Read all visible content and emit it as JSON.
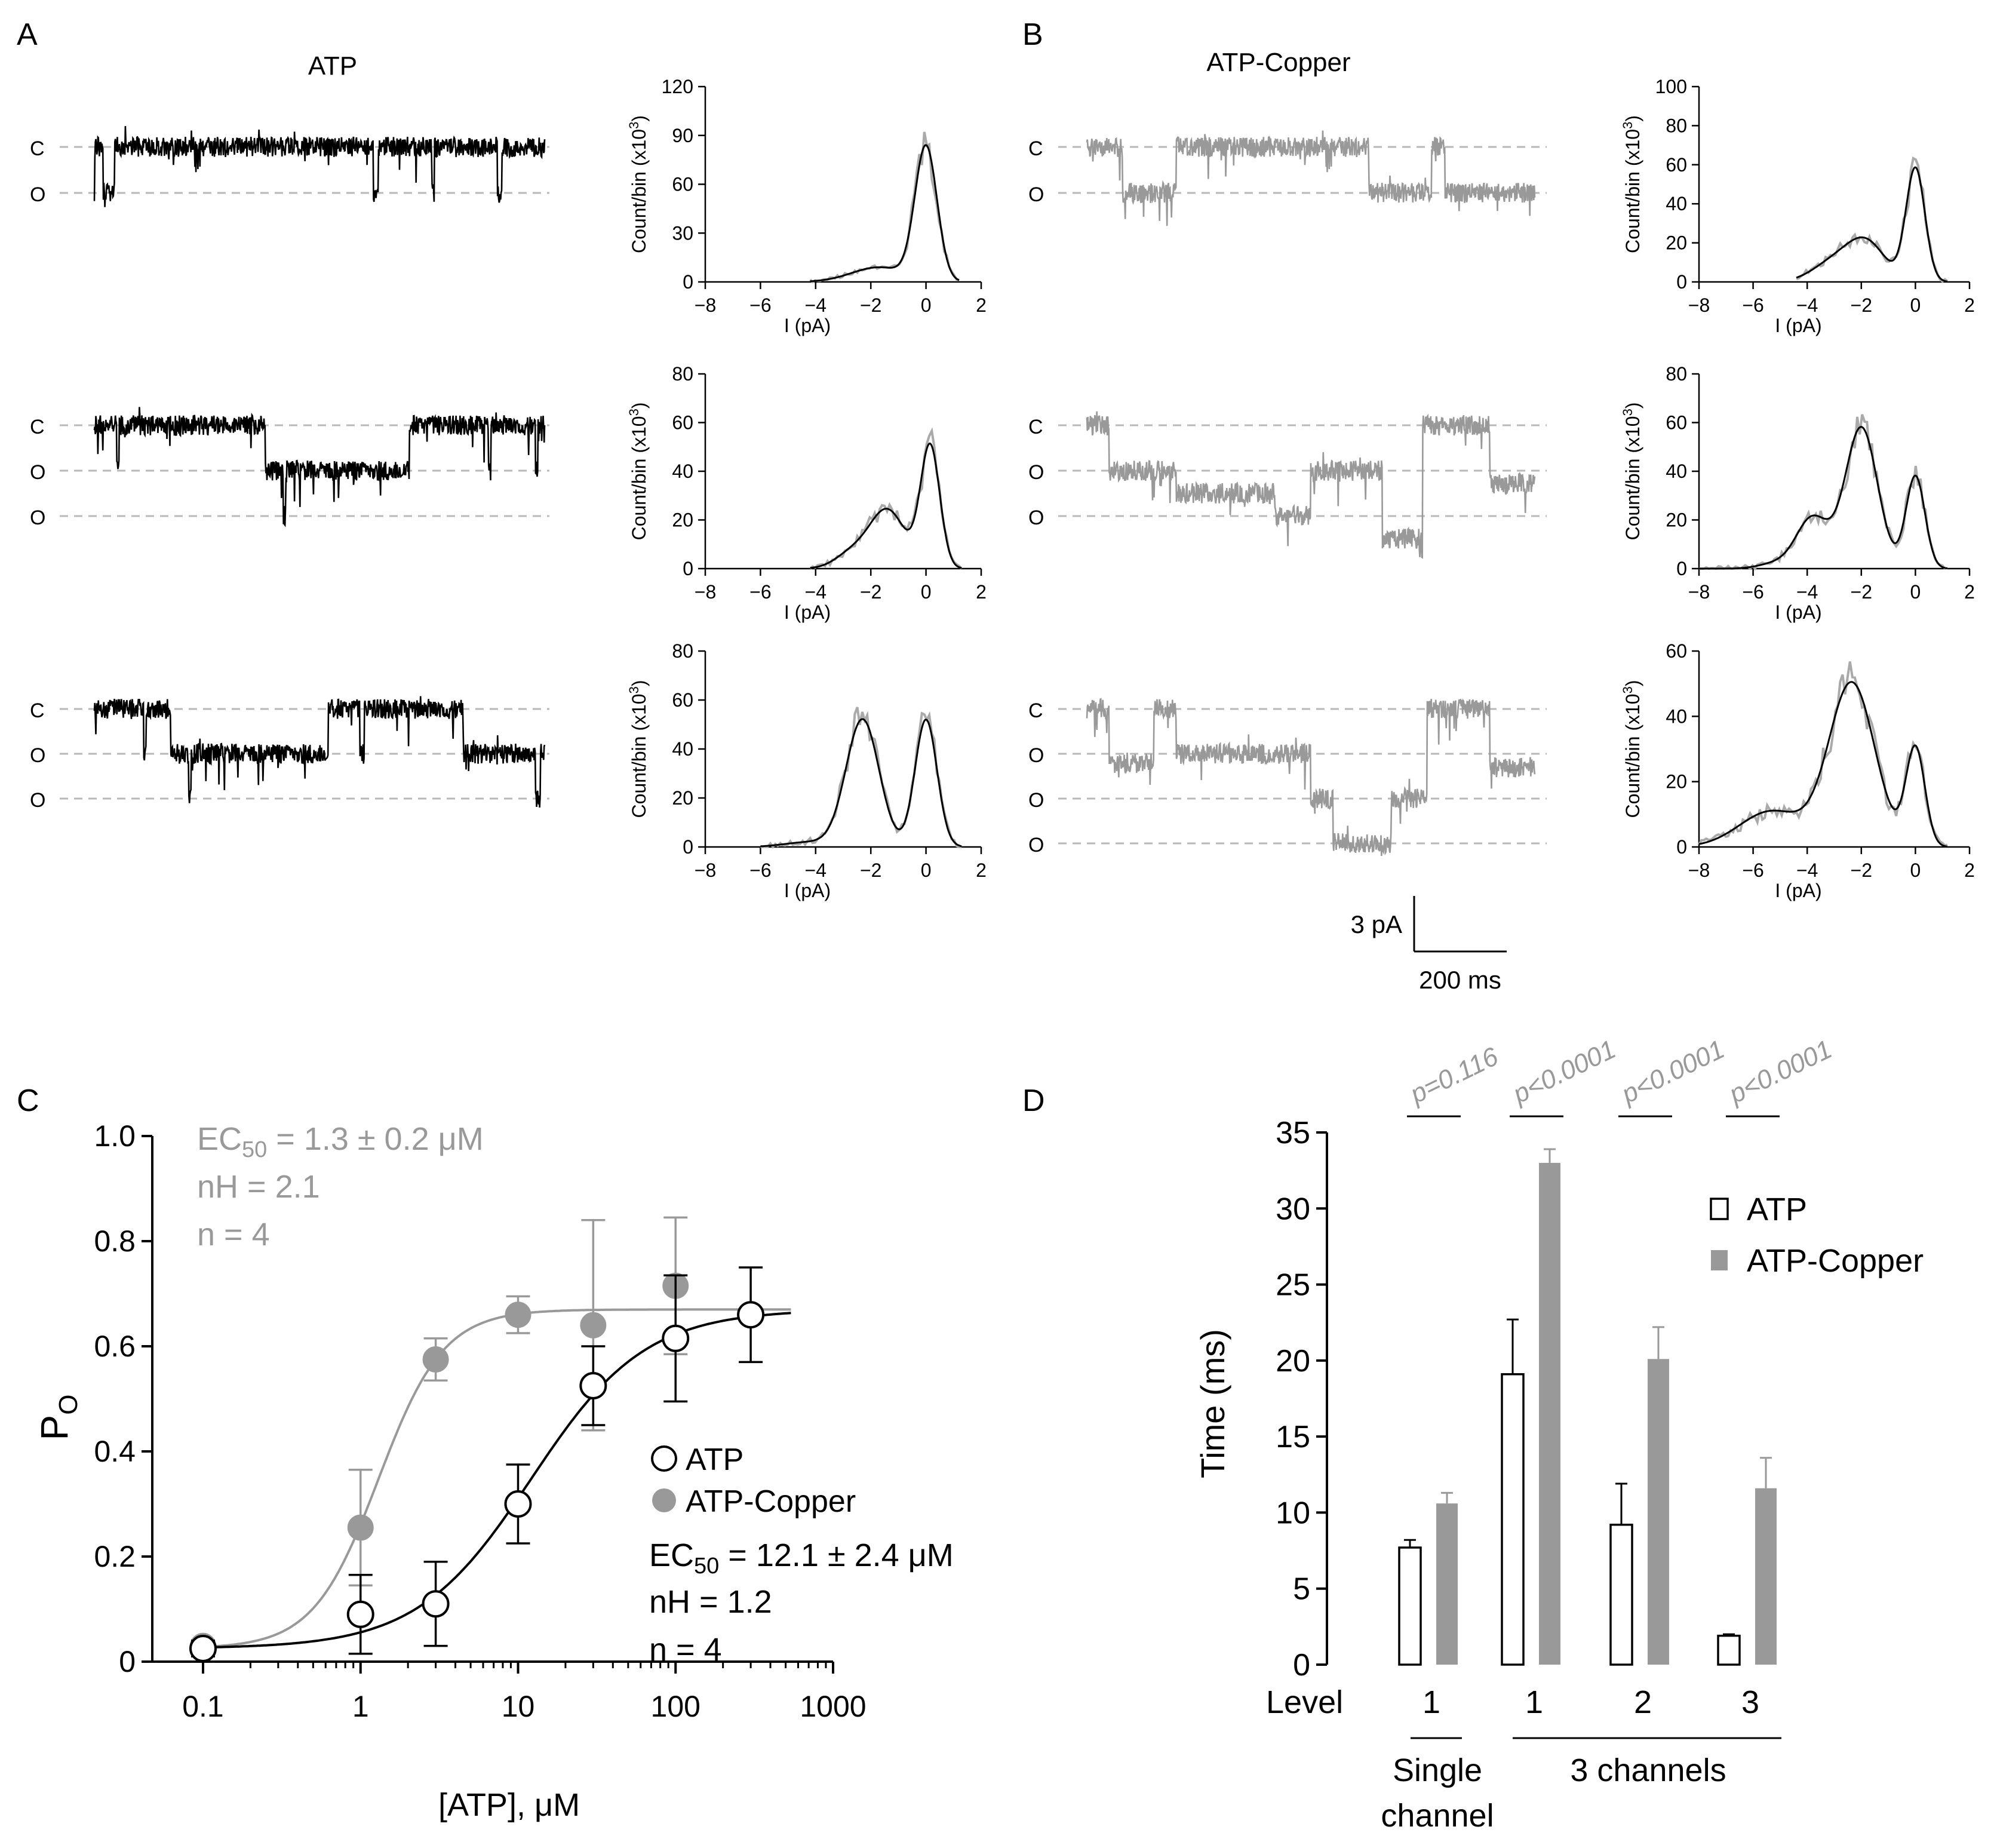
{
  "figure": {
    "panel_labels": [
      "A",
      "B",
      "C",
      "D"
    ],
    "condition_titles": [
      "ATP",
      "ATP-Copper"
    ],
    "state_labels": {
      "closed": "C",
      "open": "O"
    },
    "hist_axis": {
      "xlabel": "I (pA)",
      "ylabel": "Count/bin (x10",
      "ylabel_sup": "3",
      "ylabel_close": ")"
    },
    "scalebar": {
      "current": "3 pA",
      "time": "200 ms"
    },
    "colors": {
      "atp": "#000000",
      "copper": "#999999",
      "dash": "#b8b8b8"
    }
  },
  "chart_data": [
    {
      "type": "line",
      "panel": "A",
      "title": "ATP",
      "kind": "current-traces",
      "traces": [
        {
          "open_levels": 1,
          "segments": [
            [
              0,
              0.0,
              1
            ],
            [
              0.02,
              0.045,
              1
            ],
            [
              0.045,
              0.95,
              0
            ],
            [
              0.62,
              0.63,
              1
            ],
            [
              0.75,
              0.755,
              1
            ],
            [
              0.895,
              0.905,
              1
            ],
            [
              0.92,
              1.0,
              0
            ]
          ]
        },
        {
          "open_levels": 2,
          "segments": [
            [
              0,
              0.38,
              0
            ],
            [
              0.05,
              0.055,
              1
            ],
            [
              0.38,
              0.7,
              1
            ],
            [
              0.42,
              0.425,
              2
            ],
            [
              0.7,
              1.0,
              0
            ],
            [
              0.875,
              0.88,
              1
            ],
            [
              0.98,
              0.985,
              1
            ]
          ]
        },
        {
          "open_levels": 2,
          "segments": [
            [
              0,
              0.17,
              0
            ],
            [
              0.11,
              0.115,
              1
            ],
            [
              0.17,
              0.22,
              1
            ],
            [
              0.22,
              0.59,
              1
            ],
            [
              0.52,
              0.6,
              0
            ],
            [
              0.21,
              0.215,
              2
            ],
            [
              0.59,
              0.6,
              1
            ],
            [
              0.6,
              0.82,
              0
            ],
            [
              0.82,
              1.0,
              1
            ],
            [
              0.98,
              0.99,
              2
            ]
          ]
        }
      ]
    },
    {
      "type": "line",
      "panel": "B",
      "title": "ATP-Copper",
      "kind": "current-traces",
      "traces": [
        {
          "open_levels": 1,
          "segments": [
            [
              0,
              0.08,
              0
            ],
            [
              0.08,
              0.2,
              1
            ],
            [
              0.2,
              0.63,
              0
            ],
            [
              0.63,
              0.77,
              1
            ],
            [
              0.77,
              0.8,
              0
            ],
            [
              0.8,
              1.0,
              1
            ]
          ]
        },
        {
          "open_levels": 3,
          "segments": [
            [
              0,
              0.05,
              0
            ],
            [
              0.05,
              0.2,
              1
            ],
            [
              0.2,
              0.42,
              1.5
            ],
            [
              0.42,
              0.5,
              2
            ],
            [
              0.5,
              0.66,
              1
            ],
            [
              0.66,
              0.75,
              2.5
            ],
            [
              0.75,
              0.9,
              0
            ],
            [
              0.9,
              1.0,
              1.3
            ]
          ]
        },
        {
          "open_levels": 3,
          "segments": [
            [
              0,
              0.05,
              0
            ],
            [
              0.05,
              0.15,
              1.2
            ],
            [
              0.15,
              0.2,
              0
            ],
            [
              0.2,
              0.5,
              1
            ],
            [
              0.5,
              0.55,
              2
            ],
            [
              0.55,
              0.68,
              3
            ],
            [
              0.68,
              0.76,
              2
            ],
            [
              0.76,
              0.9,
              0
            ],
            [
              0.9,
              1.0,
              1.3
            ]
          ]
        }
      ]
    },
    {
      "type": "line",
      "panel": "A",
      "kind": "histogram",
      "xlabel": "I (pA)",
      "ylabel": "Count/bin (x10^3)",
      "xlim": [
        -8,
        2
      ],
      "xticks": [
        -8,
        -6,
        -4,
        -2,
        0,
        2
      ],
      "plots": [
        {
          "ylim": [
            0,
            120
          ],
          "yticks": [
            0,
            30,
            60,
            90,
            120
          ],
          "peaks": [
            [
              0,
              82,
              0.4
            ],
            [
              -1.7,
              9,
              1.0
            ]
          ],
          "xmin": -4.2,
          "xmax": 1.2
        },
        {
          "ylim": [
            0,
            80
          ],
          "yticks": [
            0,
            20,
            40,
            60,
            80
          ],
          "peaks": [
            [
              0.15,
              50,
              0.35
            ],
            [
              -1.4,
              24,
              0.65
            ],
            [
              -2.7,
              6,
              0.6
            ]
          ],
          "xmin": -4.2,
          "xmax": 1.3
        },
        {
          "ylim": [
            0,
            80
          ],
          "yticks": [
            0,
            20,
            40,
            60,
            80
          ],
          "peaks": [
            [
              0,
              52,
              0.4
            ],
            [
              -2.3,
              52,
              0.6
            ],
            [
              -4.2,
              2,
              0.9
            ]
          ],
          "xmin": -6.0,
          "xmax": 1.3
        }
      ]
    },
    {
      "type": "line",
      "panel": "B",
      "kind": "histogram",
      "xlabel": "I (pA)",
      "ylabel": "Count/bin (x10^3)",
      "xlim": [
        -8,
        2
      ],
      "xticks": [
        -8,
        -6,
        -4,
        -2,
        0,
        2
      ],
      "plots": [
        {
          "ylim": [
            0,
            100
          ],
          "yticks": [
            0,
            20,
            40,
            60,
            80,
            100
          ],
          "peaks": [
            [
              0,
              58,
              0.35
            ],
            [
              -1.8,
              19,
              0.7
            ],
            [
              -3.0,
              10,
              0.8
            ]
          ],
          "xmin": -4.4,
          "xmax": 1.2
        },
        {
          "ylim": [
            0,
            80
          ],
          "yticks": [
            0,
            20,
            40,
            60,
            80
          ],
          "peaks": [
            [
              0,
              38,
              0.35
            ],
            [
              -2.0,
              58,
              0.6
            ],
            [
              -3.8,
              21,
              0.6
            ],
            [
              -5.2,
              2,
              0.6
            ]
          ],
          "xmin": -8.0,
          "xmax": 1.2
        },
        {
          "ylim": [
            0,
            60
          ],
          "yticks": [
            0,
            20,
            40,
            60
          ],
          "peaks": [
            [
              0,
              30,
              0.35
            ],
            [
              -2.35,
              50,
              0.85
            ],
            [
              -5.3,
              11,
              1.2
            ]
          ],
          "xmin": -8.0,
          "xmax": 1.2
        }
      ]
    },
    {
      "type": "scatter",
      "panel": "C",
      "xlabel": "[ATP], μM",
      "ylabel": "P",
      "ylabel_sub": "O",
      "xscale": "log",
      "xlim": [
        0.1,
        1000
      ],
      "ylim": [
        0,
        1.0
      ],
      "xticks": [
        0.1,
        1,
        10,
        100,
        1000
      ],
      "xtick_labels": [
        "0.1",
        "1",
        "10",
        "100",
        "1000"
      ],
      "yticks": [
        0,
        0.2,
        0.4,
        0.6,
        0.8,
        1.0
      ],
      "ytick_labels": [
        "0",
        "0.2",
        "0.4",
        "0.6",
        "0.8",
        "1.0"
      ],
      "legend": [
        "ATP",
        "ATP-Copper"
      ],
      "series": [
        {
          "name": "ATP",
          "x": [
            0.1,
            1,
            3,
            10,
            30,
            100,
            300
          ],
          "y": [
            0.025,
            0.09,
            0.11,
            0.3,
            0.525,
            0.615,
            0.66
          ],
          "err": [
            0.015,
            0.075,
            0.08,
            0.075,
            0.075,
            0.12,
            0.09
          ],
          "fit": {
            "bottom": 0.025,
            "top": 0.67,
            "ec50": 12.1,
            "nh": 1.2
          },
          "annot": {
            "ec_prefix": "EC",
            "ec_sub": "50",
            "ec_value": " = 12.1 ± 2.4 μM",
            "nh": "nH = 1.2",
            "n": "n = 4"
          }
        },
        {
          "name": "ATP-Copper",
          "x": [
            0.1,
            1,
            3,
            10,
            30,
            100
          ],
          "y": [
            0.03,
            0.255,
            0.575,
            0.66,
            0.64,
            0.715
          ],
          "err": [
            0.01,
            0.11,
            0.04,
            0.035,
            0.2,
            0.13
          ],
          "fit": {
            "bottom": 0.025,
            "top": 0.67,
            "ec50": 1.3,
            "nh": 2.1
          },
          "annot": {
            "ec_prefix": "EC",
            "ec_sub": "50",
            "ec_value": " = 1.3 ± 0.2 μM",
            "nh": "nH = 2.1",
            "n": "n = 4"
          }
        }
      ]
    },
    {
      "type": "bar",
      "panel": "D",
      "ylabel": "Time (ms)",
      "ylim": [
        0,
        35
      ],
      "yticks": [
        0,
        5,
        10,
        15,
        20,
        25,
        30,
        35
      ],
      "x_level_label": "Level",
      "categories": [
        "1",
        "1",
        "2",
        "3"
      ],
      "groups": [
        {
          "label": "Single channel",
          "span": [
            0,
            0
          ]
        },
        {
          "label": "3 channels",
          "span": [
            1,
            3
          ]
        }
      ],
      "legend": [
        "ATP",
        "ATP-Copper"
      ],
      "series": [
        {
          "name": "ATP",
          "values": [
            7.7,
            19.1,
            9.2,
            1.9
          ],
          "err": [
            0.5,
            3.6,
            2.7,
            0.1
          ]
        },
        {
          "name": "ATP-Copper",
          "values": [
            10.6,
            33.0,
            20.1,
            11.6
          ],
          "err": [
            0.7,
            0.9,
            2.1,
            2.0
          ]
        }
      ],
      "pvalues": [
        "p=0.116",
        "p<0.0001",
        "p<0.0001",
        "p<0.0001"
      ]
    }
  ]
}
